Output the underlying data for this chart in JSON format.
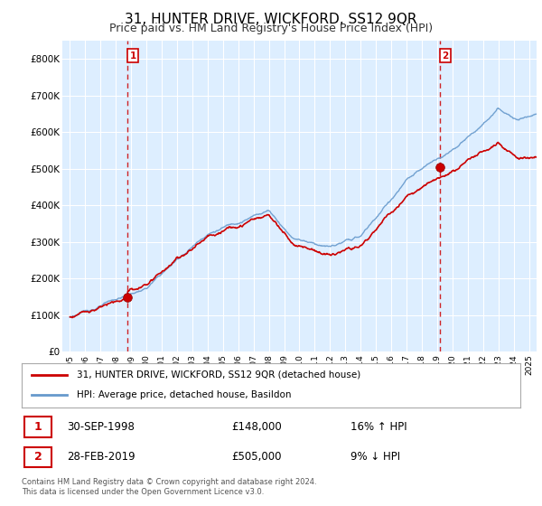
{
  "title": "31, HUNTER DRIVE, WICKFORD, SS12 9QR",
  "subtitle": "Price paid vs. HM Land Registry's House Price Index (HPI)",
  "title_fontsize": 11,
  "subtitle_fontsize": 9,
  "ylim": [
    0,
    850000
  ],
  "yticks": [
    0,
    100000,
    200000,
    300000,
    400000,
    500000,
    600000,
    700000,
    800000
  ],
  "ytick_labels": [
    "£0",
    "£100K",
    "£200K",
    "£300K",
    "£400K",
    "£500K",
    "£600K",
    "£700K",
    "£800K"
  ],
  "sale1": {
    "date_num": 1998.75,
    "price": 148000,
    "label": "1",
    "pct": "16% ↑ HPI",
    "date_str": "30-SEP-1998"
  },
  "sale2": {
    "date_num": 2019.17,
    "price": 505000,
    "label": "2",
    "pct": "9% ↓ HPI",
    "date_str": "28-FEB-2019"
  },
  "vline_color": "#cc0000",
  "sale_dot_color": "#cc0000",
  "hpi_line_color": "#6699cc",
  "price_line_color": "#cc0000",
  "bg_color": "#ffffff",
  "plot_bg_color": "#ddeeff",
  "legend1": "31, HUNTER DRIVE, WICKFORD, SS12 9QR (detached house)",
  "legend2": "HPI: Average price, detached house, Basildon",
  "footnote": "Contains HM Land Registry data © Crown copyright and database right 2024.\nThis data is licensed under the Open Government Licence v3.0.",
  "xmin": 1994.5,
  "xmax": 2025.5,
  "xticks": [
    1995,
    1996,
    1997,
    1998,
    1999,
    2000,
    2001,
    2002,
    2003,
    2004,
    2005,
    2006,
    2007,
    2008,
    2009,
    2010,
    2011,
    2012,
    2013,
    2014,
    2015,
    2016,
    2017,
    2018,
    2019,
    2020,
    2021,
    2022,
    2023,
    2024,
    2025
  ]
}
